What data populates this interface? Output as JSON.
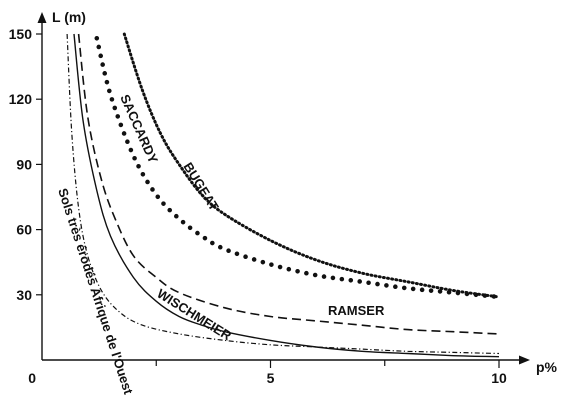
{
  "chart_data": {
    "type": "line",
    "xlabel": "p%",
    "ylabel": "L (m)",
    "origin_label": "0",
    "xlim": [
      0,
      10.3
    ],
    "ylim": [
      0,
      155
    ],
    "x_ticks": [
      5,
      10
    ],
    "x_minor_ticks": [
      2.5,
      7.5
    ],
    "x_tick_labels": [
      "5",
      "10"
    ],
    "y_ticks": [
      30,
      60,
      90,
      120,
      150
    ],
    "y_tick_labels": [
      "30",
      "60",
      "90",
      "120",
      "150"
    ],
    "grid": false,
    "series": [
      {
        "name": "BUGEAT",
        "style": "dotted-fine",
        "x": [
          1.8,
          2.2,
          2.6,
          3.0,
          3.5,
          4.0,
          5.0,
          6.0,
          7.0,
          8.0,
          9.0,
          10.0
        ],
        "y": [
          150,
          124,
          104,
          90,
          76,
          67,
          55,
          46,
          40,
          36,
          32,
          29
        ]
      },
      {
        "name": "SACCARDY",
        "style": "dotted-heavy",
        "x": [
          1.2,
          1.5,
          2.0,
          2.5,
          3.0,
          3.5,
          4.0,
          5.0,
          6.0,
          7.0,
          8.0,
          9.0,
          10.0
        ],
        "y": [
          148,
          122,
          94,
          76,
          65,
          57,
          51,
          44,
          39,
          36,
          33,
          31,
          29
        ]
      },
      {
        "name": "RAMSER",
        "style": "dashed",
        "x": [
          0.8,
          1.0,
          1.3,
          1.6,
          2.0,
          2.5,
          3.0,
          4.0,
          5.0,
          6.0,
          7.0,
          8.0,
          9.0,
          10.0
        ],
        "y": [
          150,
          112,
          83,
          65,
          48,
          38,
          31,
          24,
          20,
          18,
          16,
          14,
          13,
          12
        ]
      },
      {
        "name": "WISCHMEIER",
        "style": "solid",
        "x": [
          0.7,
          0.9,
          1.2,
          1.5,
          2.0,
          2.5,
          3.0,
          3.5,
          4.0,
          5.0,
          6.0,
          7.0,
          8.0,
          9.0,
          10.0
        ],
        "y": [
          150,
          110,
          78,
          57,
          38,
          27,
          20,
          16,
          13,
          9,
          6,
          4,
          3,
          2,
          1.5
        ]
      },
      {
        "name": "Sols très érodés Afrique de l'Ouest",
        "style": "dash-dot",
        "x": [
          0.55,
          0.65,
          0.8,
          1.0,
          1.3,
          1.7,
          2.2,
          3.0,
          4.0,
          5.0,
          6.0,
          7.0,
          8.0,
          9.0,
          10.0
        ],
        "y": [
          150,
          105,
          70,
          48,
          32,
          22,
          16,
          12,
          9,
          7,
          6,
          5,
          4,
          3.5,
          3
        ]
      }
    ]
  }
}
